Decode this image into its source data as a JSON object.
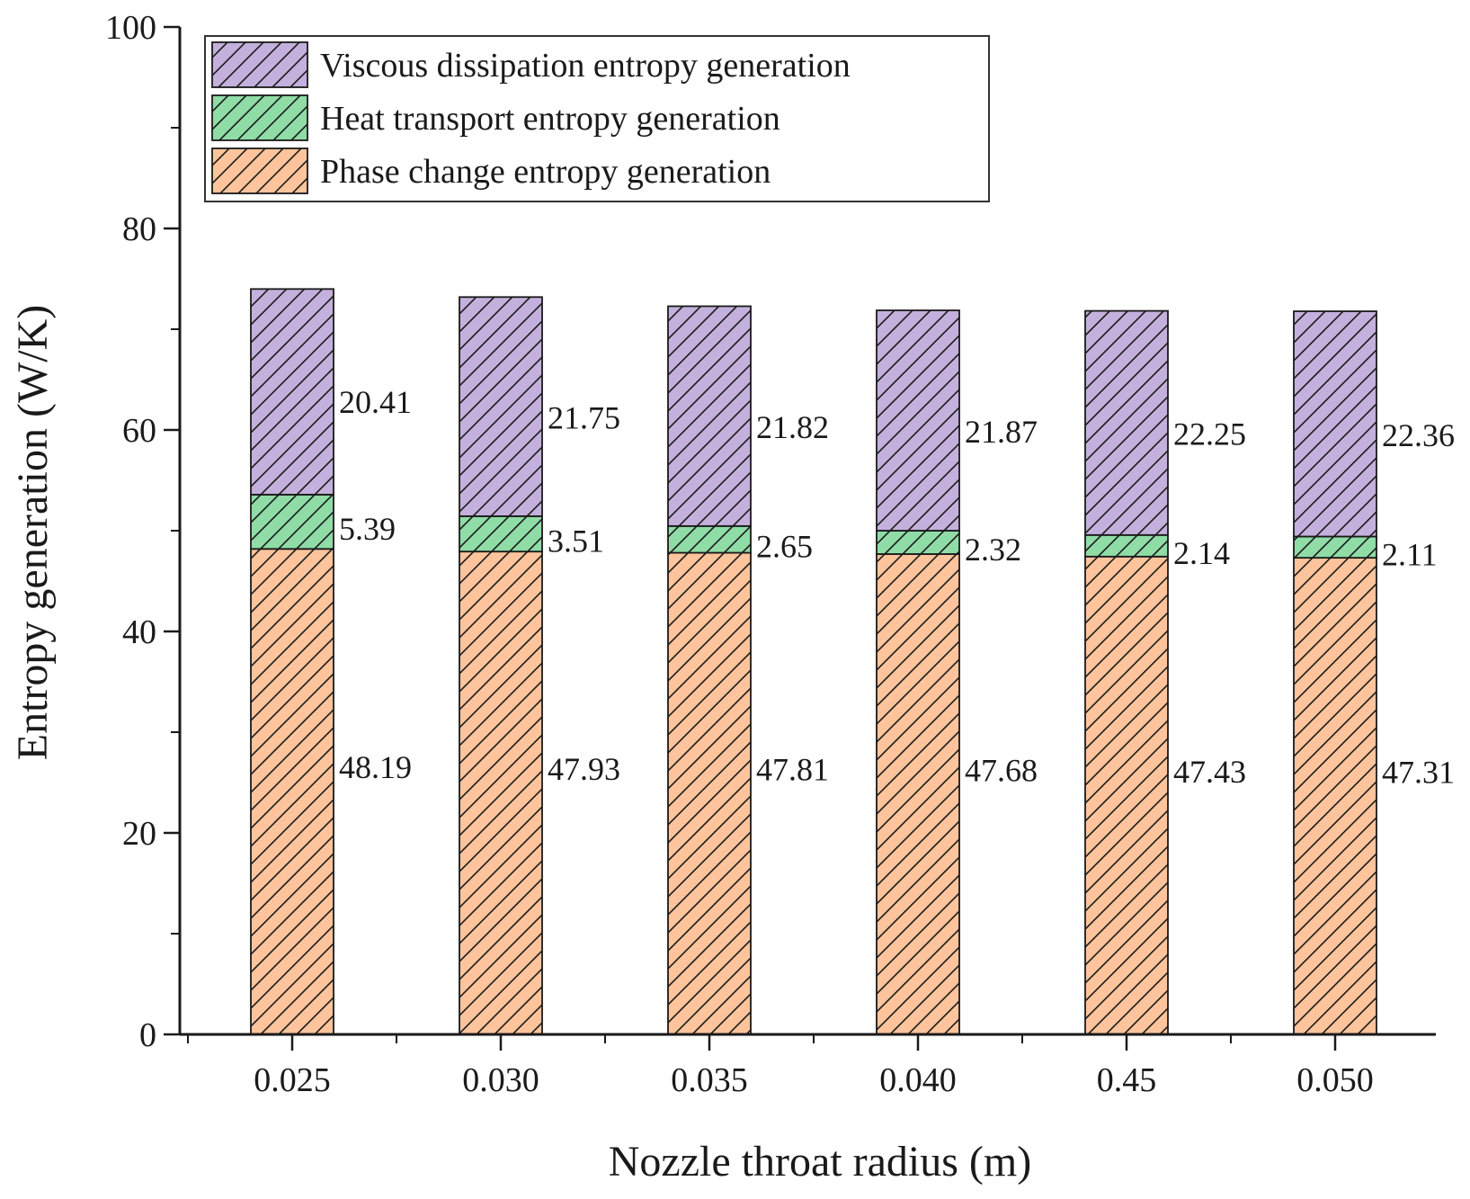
{
  "chart_data": {
    "type": "bar",
    "stacked": true,
    "title": "",
    "xlabel": "Nozzle throat radius (m)",
    "ylabel": "Entropy generation (W/K)",
    "ylim": [
      0,
      100
    ],
    "yticks": [
      0,
      20,
      40,
      60,
      80,
      100
    ],
    "y_tick_labels": [
      "0",
      "20",
      "40",
      "60",
      "80",
      "100"
    ],
    "grid": false,
    "legend_position": "top-left",
    "categories": [
      "0.025",
      "0.030",
      "0.035",
      "0.040",
      "0.45",
      "0.050"
    ],
    "series": [
      {
        "name": "Phase change entropy generation",
        "color": "#ffc49c",
        "values": [
          48.19,
          47.93,
          47.81,
          47.68,
          47.43,
          47.31
        ],
        "labels": [
          "48.19",
          "47.93",
          "47.81",
          "47.68",
          "47.43",
          "47.31"
        ]
      },
      {
        "name": "Heat transport entropy generation",
        "color": "#8fdca6",
        "values": [
          5.39,
          3.51,
          2.65,
          2.32,
          2.14,
          2.11
        ],
        "labels": [
          "5.39",
          "3.51",
          "2.65",
          "2.32",
          "2.14",
          "2.11"
        ]
      },
      {
        "name": "Viscous dissipation entropy generation",
        "color": "#c4b0dc",
        "values": [
          20.41,
          21.75,
          21.82,
          21.87,
          22.25,
          22.36
        ],
        "labels": [
          "20.41",
          "21.75",
          "21.82",
          "21.87",
          "22.25",
          "22.36"
        ]
      }
    ],
    "legend_order": [
      2,
      1,
      0
    ]
  }
}
